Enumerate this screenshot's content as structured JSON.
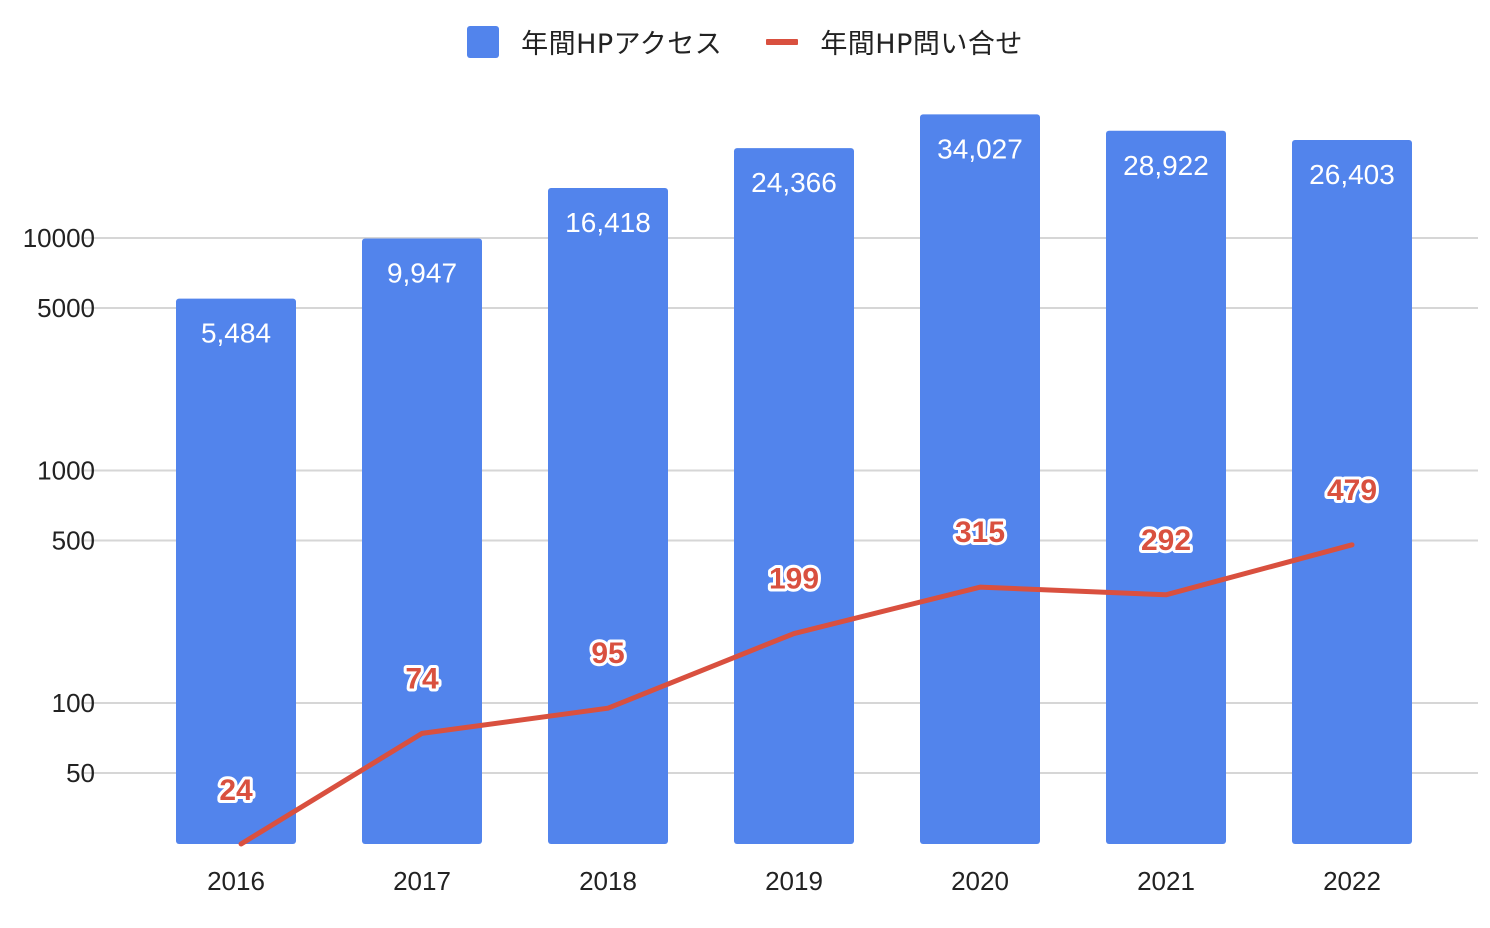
{
  "legend": {
    "series1": "年間HPアクセス",
    "series2": "年間HP問い合せ"
  },
  "colors": {
    "bar": "#5284EC",
    "line": "#D9503F",
    "grid": "#D6D6D6",
    "text": "#222222"
  },
  "chart_data": {
    "type": "bar",
    "scale": "log",
    "categories": [
      "2016",
      "2017",
      "2018",
      "2019",
      "2020",
      "2021",
      "2022"
    ],
    "series": [
      {
        "name": "年間HPアクセス",
        "kind": "bar",
        "values": [
          5484,
          9947,
          16418,
          24366,
          34027,
          28922,
          26403
        ],
        "labels": [
          "5,484",
          "9,947",
          "16,418",
          "24,366",
          "34,027",
          "28,922",
          "26,403"
        ]
      },
      {
        "name": "年間HP問い合せ",
        "kind": "line",
        "values": [
          24,
          74,
          95,
          199,
          315,
          292,
          479
        ],
        "labels": [
          "24",
          "74",
          "95",
          "199",
          "315",
          "292",
          "479"
        ]
      }
    ],
    "y_ticks": [
      50,
      100,
      500,
      1000,
      5000,
      10000
    ],
    "y_tick_labels": [
      "50",
      "100",
      "500",
      "1000",
      "5000",
      "10000"
    ],
    "legend_position": "top",
    "grid": true
  }
}
